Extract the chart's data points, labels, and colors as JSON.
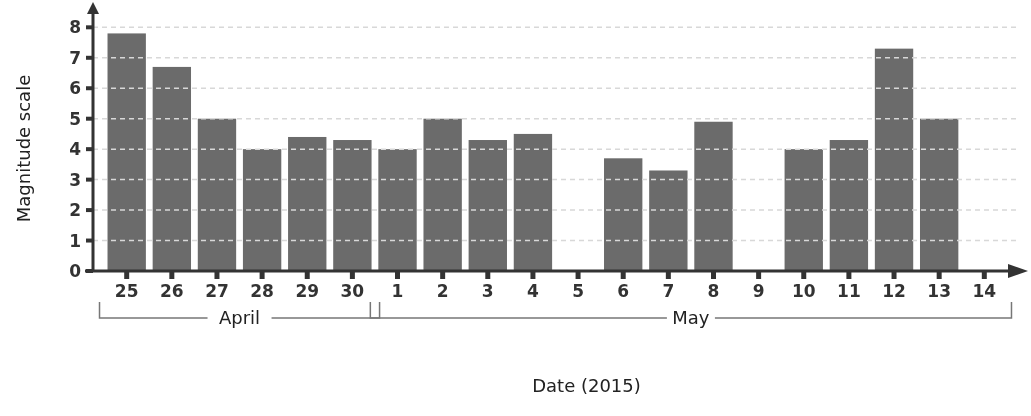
{
  "chart_data": {
    "type": "bar",
    "xlabel": "Date (2015)",
    "ylabel": "Magnitude scale",
    "categories": [
      "25",
      "26",
      "27",
      "28",
      "29",
      "30",
      "1",
      "2",
      "3",
      "4",
      "5",
      "6",
      "7",
      "8",
      "9",
      "10",
      "11",
      "12",
      "13",
      "14"
    ],
    "values": [
      7.8,
      6.7,
      5.0,
      4.0,
      4.4,
      4.3,
      4.0,
      5.0,
      4.3,
      4.5,
      null,
      3.7,
      3.3,
      4.9,
      null,
      4.0,
      4.3,
      7.3,
      5.0,
      null
    ],
    "color": "#6b6b6b",
    "ylim": [
      0,
      8.7
    ],
    "yticks": [
      0,
      1,
      2,
      3,
      4,
      5,
      6,
      7,
      8
    ],
    "grid": "y",
    "annotations": [
      "April",
      "May"
    ]
  }
}
